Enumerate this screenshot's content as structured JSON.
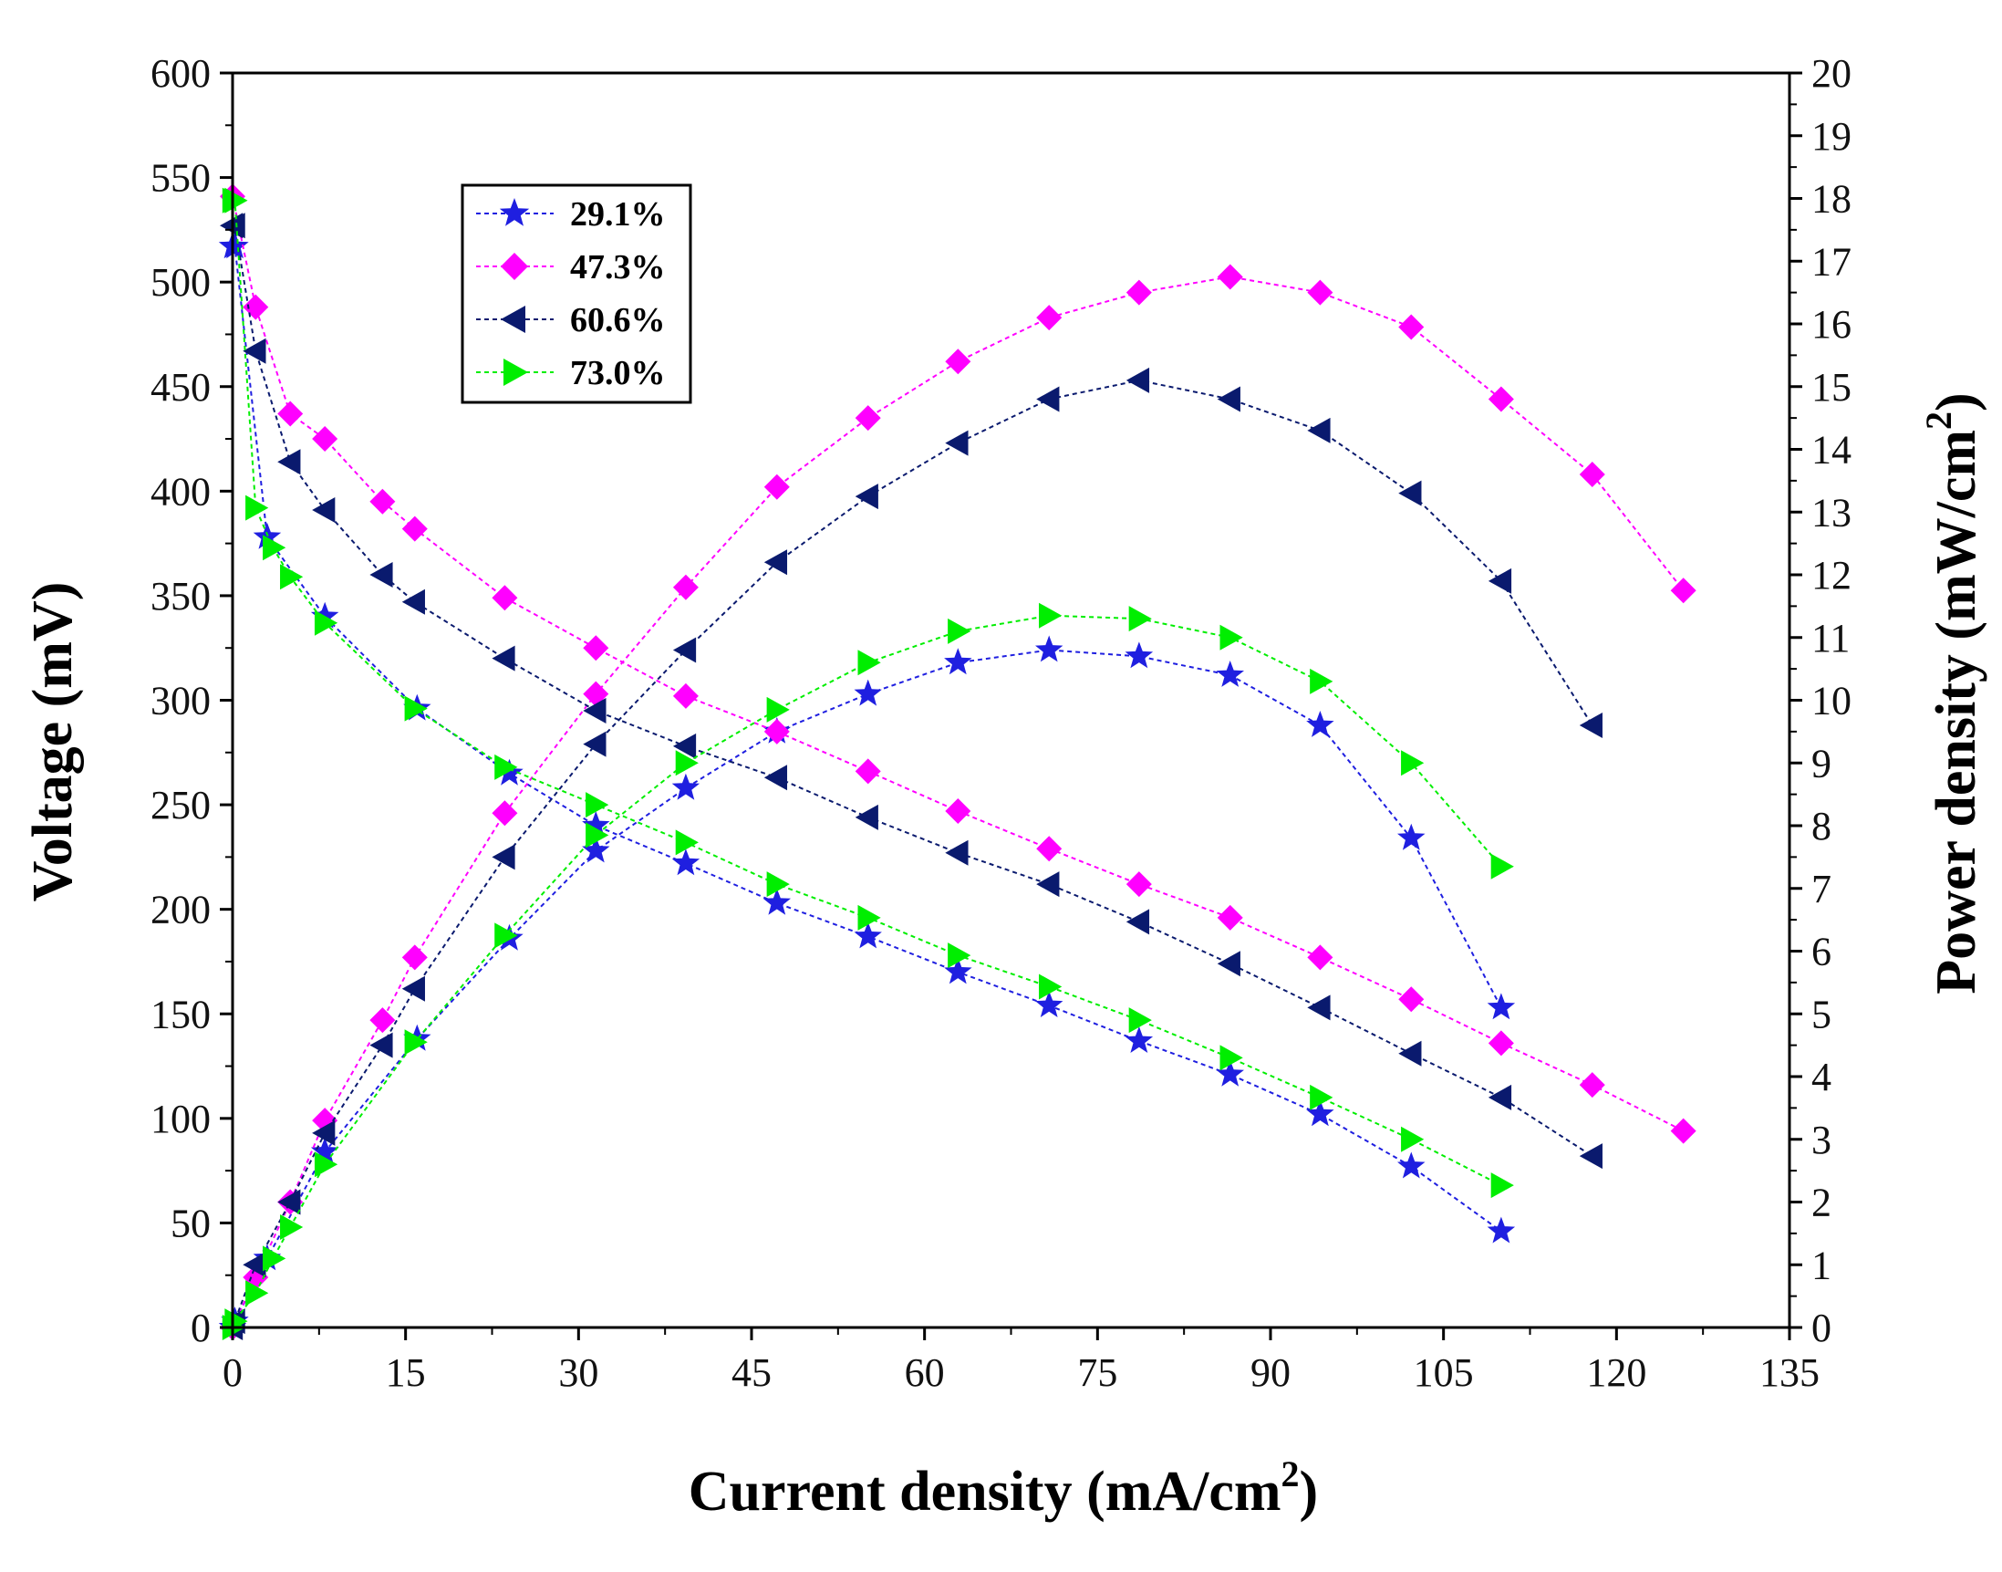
{
  "chart_data": {
    "type": "line",
    "xlabel": "Current density (mA/cm",
    "xlabel_sup": "2",
    "xlabel_end": ")",
    "ylabel_left": "Voltage (mV)",
    "ylabel_right": "Power density (mW/cm",
    "ylabel_right_sup": "2",
    "ylabel_right_end": ")",
    "xlim": [
      0,
      135
    ],
    "ylim_left": [
      0,
      600
    ],
    "ylim_right": [
      0,
      20
    ],
    "x_ticks": [
      "0",
      "15",
      "30",
      "45",
      "60",
      "75",
      "90",
      "105",
      "120",
      "135"
    ],
    "y_left_ticks": [
      "0",
      "50",
      "100",
      "150",
      "200",
      "250",
      "300",
      "350",
      "400",
      "450",
      "500",
      "550",
      "600"
    ],
    "y_right_ticks": [
      "0",
      "1",
      "2",
      "3",
      "4",
      "5",
      "6",
      "7",
      "8",
      "9",
      "10",
      "11",
      "12",
      "13",
      "14",
      "15",
      "16",
      "17",
      "18",
      "19",
      "20"
    ],
    "legend_position": "top-left",
    "series": [
      {
        "name": "29.1%",
        "color": "#1f1fe0",
        "marker": "star",
        "voltage": {
          "x": [
            0,
            0.2,
            3,
            8,
            16,
            24,
            31.5,
            39.3,
            47.2,
            55.1,
            62.9,
            70.8,
            78.6,
            86.5,
            94.3,
            102.2,
            110
          ],
          "y": [
            517,
            517,
            378,
            340,
            296,
            265,
            240,
            222,
            203,
            187,
            170,
            154,
            137,
            121,
            102,
            77,
            46
          ]
        },
        "power": {
          "x": [
            0,
            0.2,
            3,
            8,
            16,
            24,
            31.5,
            39.3,
            47.2,
            55.1,
            62.9,
            70.8,
            78.6,
            86.5,
            94.3,
            102.2,
            110
          ],
          "y": [
            0,
            0.1,
            1.1,
            2.8,
            4.6,
            6.2,
            7.6,
            8.6,
            9.5,
            10.1,
            10.6,
            10.8,
            10.7,
            10.4,
            9.6,
            7.8,
            5.1
          ]
        }
      },
      {
        "name": "47.3%",
        "color": "#ff00ff",
        "marker": "diamond",
        "voltage": {
          "x": [
            0,
            2,
            5,
            8,
            13,
            15.8,
            23.6,
            31.5,
            39.3,
            47.2,
            55.1,
            62.9,
            70.8,
            78.6,
            86.5,
            94.3,
            102.2,
            110,
            117.9,
            125.8
          ],
          "y": [
            541,
            488,
            437,
            425,
            395,
            382,
            349,
            325,
            302,
            285,
            266,
            247,
            229,
            212,
            196,
            177,
            157,
            136,
            116,
            94
          ]
        },
        "power": {
          "x": [
            0,
            2,
            5,
            8,
            13,
            15.8,
            23.6,
            31.5,
            39.3,
            47.2,
            55.1,
            62.9,
            70.8,
            78.6,
            86.5,
            94.3,
            102.2,
            110,
            117.9,
            125.8
          ],
          "y": [
            0,
            0.8,
            2.0,
            3.3,
            4.9,
            5.9,
            8.2,
            10.1,
            11.8,
            13.4,
            14.5,
            15.4,
            16.1,
            16.5,
            16.75,
            16.5,
            15.95,
            14.8,
            13.6,
            11.75
          ]
        }
      },
      {
        "name": "60.6%",
        "color": "#0a1a6e",
        "marker": "triangle-left",
        "voltage": {
          "x": [
            0,
            0.2,
            2,
            5,
            8,
            13,
            15.8,
            23.6,
            31.5,
            39.3,
            47.2,
            55.1,
            62.9,
            70.8,
            78.6,
            86.5,
            94.3,
            102.2,
            110,
            117.9
          ],
          "y": [
            527,
            527,
            467,
            414,
            391,
            360,
            347,
            320,
            295,
            278,
            263,
            244,
            227,
            212,
            194,
            174,
            153,
            131,
            110,
            82
          ]
        },
        "power": {
          "x": [
            0,
            0.2,
            2,
            5,
            8,
            13,
            15.8,
            23.6,
            31.5,
            39.3,
            47.2,
            55.1,
            62.9,
            70.8,
            78.6,
            86.5,
            94.3,
            102.2,
            110,
            117.9
          ],
          "y": [
            0,
            0.1,
            1.0,
            2.0,
            3.1,
            4.5,
            5.4,
            7.5,
            9.3,
            10.8,
            12.2,
            13.25,
            14.1,
            14.8,
            15.1,
            14.8,
            14.3,
            13.3,
            11.9,
            9.6
          ]
        }
      },
      {
        "name": "73.0%",
        "color": "#00ee00",
        "marker": "triangle-right",
        "voltage": {
          "x": [
            0,
            0.2,
            2,
            3.5,
            5,
            8,
            15.8,
            23.6,
            31.5,
            39.3,
            47.2,
            55.1,
            62.9,
            70.8,
            78.6,
            86.5,
            94.3,
            102.2,
            110
          ],
          "y": [
            539,
            539,
            392,
            373,
            359,
            337,
            296,
            268,
            250,
            232,
            212,
            196,
            178,
            163,
            147,
            129,
            110,
            90,
            68
          ]
        },
        "power": {
          "x": [
            0,
            0.2,
            2,
            3.5,
            5,
            8,
            15.8,
            23.6,
            31.5,
            39.3,
            47.2,
            55.1,
            62.9,
            70.8,
            78.6,
            86.5,
            94.3,
            102.2,
            110
          ],
          "y": [
            0,
            0.1,
            0.55,
            1.1,
            1.6,
            2.6,
            4.55,
            6.25,
            7.85,
            9.0,
            9.85,
            10.6,
            11.1,
            11.35,
            11.3,
            11.0,
            10.3,
            9.0,
            7.35
          ]
        }
      }
    ]
  }
}
